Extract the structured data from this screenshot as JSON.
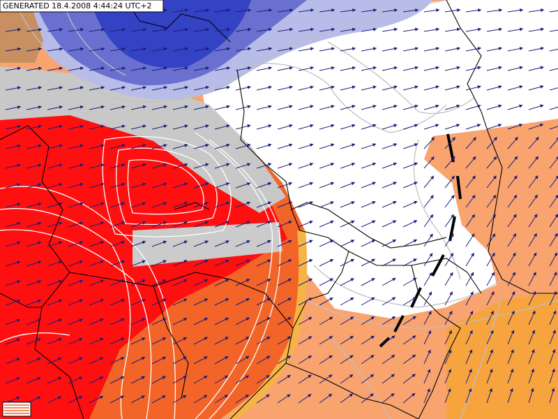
{
  "header": {
    "title": "GENERATED 18.4.2008 4:44:24 UTC+2"
  }
}
